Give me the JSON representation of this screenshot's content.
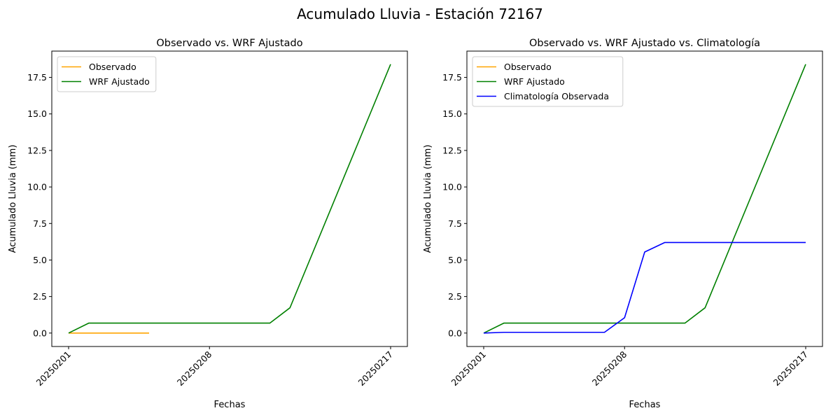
{
  "figure_title": "Acumulado Lluvia - Estación 72167",
  "chart_data": [
    {
      "type": "line",
      "title": "Observado vs. WRF Ajustado",
      "xlabel": "Fechas",
      "ylabel": "Acumulado Lluvia (mm)",
      "x_ticks": [
        "20250201",
        "20250208",
        "20250217"
      ],
      "x_range": [
        "20250201",
        "20250217"
      ],
      "ylim": [
        -0.92,
        19.3
      ],
      "y_ticks": [
        0.0,
        2.5,
        5.0,
        7.5,
        10.0,
        12.5,
        15.0,
        17.5
      ],
      "y_tick_labels": [
        "0.0",
        "2.5",
        "5.0",
        "7.5",
        "10.0",
        "12.5",
        "15.0",
        "17.5"
      ],
      "grid": false,
      "legend_position": "top-left",
      "series": [
        {
          "name": "Observado",
          "color": "#ffa500",
          "x": [
            "20250201",
            "20250202",
            "20250203",
            "20250204",
            "20250205"
          ],
          "y": [
            0.0,
            0.0,
            0.0,
            0.0,
            0.0
          ]
        },
        {
          "name": "WRF Ajustado",
          "color": "#008000",
          "x": [
            "20250201",
            "20250202",
            "20250211",
            "20250212",
            "20250217"
          ],
          "y": [
            0.0,
            0.68,
            0.68,
            1.73,
            18.4
          ]
        }
      ]
    },
    {
      "type": "line",
      "title": "Observado vs. WRF Ajustado vs. Climatología",
      "xlabel": "Fechas",
      "ylabel": "Acumulado Lluvia (mm)",
      "x_ticks": [
        "20250201",
        "20250208",
        "20250217"
      ],
      "x_range": [
        "20250201",
        "20250217"
      ],
      "ylim": [
        -0.92,
        19.3
      ],
      "y_ticks": [
        0.0,
        2.5,
        5.0,
        7.5,
        10.0,
        12.5,
        15.0,
        17.5
      ],
      "y_tick_labels": [
        "0.0",
        "2.5",
        "5.0",
        "7.5",
        "10.0",
        "12.5",
        "15.0",
        "17.5"
      ],
      "grid": false,
      "legend_position": "top-left",
      "series": [
        {
          "name": "Observado",
          "color": "#ffa500",
          "x": [],
          "y": []
        },
        {
          "name": "WRF Ajustado",
          "color": "#008000",
          "x": [
            "20250201",
            "20250202",
            "20250211",
            "20250212",
            "20250217"
          ],
          "y": [
            0.0,
            0.68,
            0.68,
            1.73,
            18.4
          ]
        },
        {
          "name": "Climatología Observada",
          "color": "#0000ff",
          "x": [
            "20250201",
            "20250202",
            "20250205",
            "20250206",
            "20250207",
            "20250208",
            "20250209",
            "20250210",
            "20250211",
            "20250212",
            "20250213",
            "20250214",
            "20250215",
            "20250216",
            "20250217"
          ],
          "y": [
            0.0,
            0.05,
            0.05,
            0.05,
            0.05,
            1.05,
            5.55,
            6.2,
            6.2,
            6.2,
            6.2,
            6.2,
            6.2,
            6.2,
            6.2
          ]
        }
      ]
    }
  ]
}
